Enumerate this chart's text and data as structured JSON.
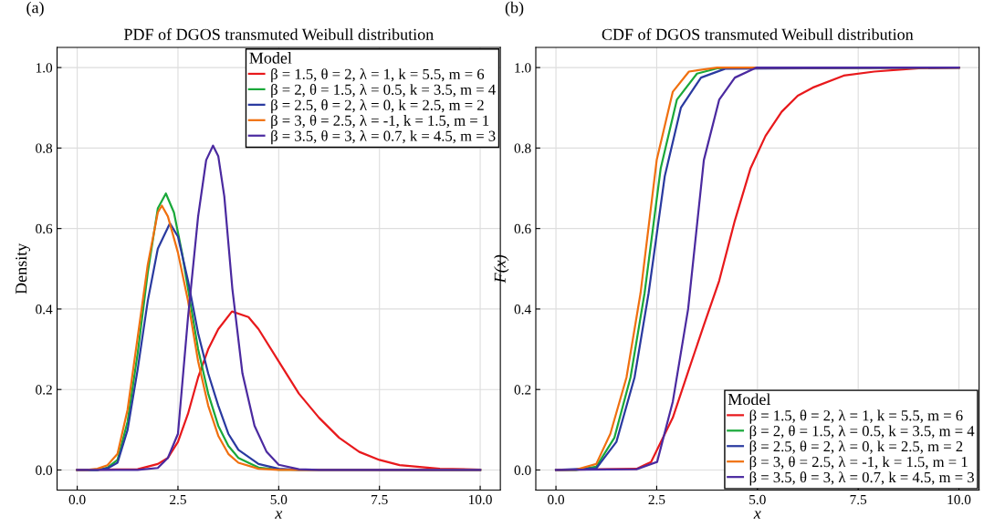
{
  "chart_data": [
    {
      "type": "line",
      "title": "PDF of DGOS transmuted Weibull distribution",
      "xlabel": "x",
      "ylabel": "Density",
      "annotations": [
        "(a)"
      ],
      "legend_title": "Model",
      "legend": "top right",
      "grid": true,
      "xlim": [
        -0.5,
        10.5
      ],
      "xticks": [
        {
          "value": 0,
          "label": "0.0"
        },
        {
          "value": 2.5,
          "label": "2.5"
        },
        {
          "value": 5,
          "label": "5.0"
        },
        {
          "value": 7.5,
          "label": "7.5"
        },
        {
          "value": 10,
          "label": "10.0"
        }
      ],
      "ylim": [
        -0.05,
        1.05
      ],
      "yticks": [
        {
          "value": 0,
          "label": "0.0"
        },
        {
          "value": 0.2,
          "label": "0.2"
        },
        {
          "value": 0.4,
          "label": "0.4"
        },
        {
          "value": 0.6,
          "label": "0.6"
        },
        {
          "value": 0.8,
          "label": "0.8"
        },
        {
          "value": 1.0,
          "label": "1.0"
        }
      ],
      "series": [
        {
          "name": "β = 1.5, θ = 2, λ = 1, k = 5.5, m = 6",
          "color": "#e8191c",
          "x": [
            0,
            1.5,
            2.0,
            2.25,
            2.5,
            2.75,
            3.0,
            3.25,
            3.5,
            3.84,
            4.25,
            4.5,
            5.0,
            5.5,
            6.0,
            6.5,
            7.0,
            7.5,
            8.0,
            9.0,
            10.0
          ],
          "values": [
            0,
            0.002,
            0.015,
            0.03,
            0.07,
            0.14,
            0.23,
            0.3,
            0.35,
            0.394,
            0.38,
            0.35,
            0.27,
            0.19,
            0.13,
            0.08,
            0.045,
            0.025,
            0.012,
            0.003,
            0.001
          ]
        },
        {
          "name": "β = 2, θ = 1.5, λ = 0.5, k = 3.5, m = 4",
          "color": "#1aa83a",
          "x": [
            0,
            0.5,
            0.75,
            1.0,
            1.25,
            1.5,
            1.75,
            2.0,
            2.2,
            2.4,
            2.6,
            2.8,
            3.0,
            3.25,
            3.5,
            3.75,
            4.0,
            4.5,
            5.0,
            10.0
          ],
          "values": [
            0,
            0,
            0.006,
            0.025,
            0.12,
            0.29,
            0.49,
            0.65,
            0.687,
            0.64,
            0.54,
            0.42,
            0.3,
            0.19,
            0.11,
            0.06,
            0.03,
            0.006,
            0.001,
            0
          ]
        },
        {
          "name": "β = 2.5, θ = 2, λ = 0, k = 2.5, m = 2",
          "color": "#2a3aa0",
          "x": [
            0,
            0.5,
            0.75,
            1.0,
            1.25,
            1.5,
            1.75,
            2.0,
            2.3,
            2.5,
            2.75,
            3.0,
            3.25,
            3.5,
            3.75,
            4.0,
            4.5,
            5.0,
            5.5,
            10.0
          ],
          "values": [
            0,
            0,
            0.004,
            0.018,
            0.1,
            0.25,
            0.42,
            0.55,
            0.613,
            0.58,
            0.47,
            0.34,
            0.24,
            0.16,
            0.09,
            0.05,
            0.015,
            0.003,
            0,
            0
          ]
        },
        {
          "name": "β = 3, θ = 2.5, λ = -1, k = 1.5, m = 1",
          "color": "#f07010",
          "x": [
            0,
            0.25,
            0.5,
            0.75,
            1.0,
            1.25,
            1.5,
            1.75,
            2.0,
            2.1,
            2.25,
            2.5,
            2.75,
            3.0,
            3.25,
            3.5,
            3.75,
            4.0,
            4.5,
            5.0,
            10.0
          ],
          "values": [
            0,
            0,
            0.003,
            0.012,
            0.04,
            0.15,
            0.33,
            0.51,
            0.64,
            0.657,
            0.63,
            0.54,
            0.42,
            0.27,
            0.16,
            0.085,
            0.04,
            0.018,
            0.003,
            0,
            0
          ]
        },
        {
          "name": "β = 3.5, θ = 3, λ = 0.7, k = 4.5, m = 3",
          "color": "#4b2aa0",
          "x": [
            0,
            1.5,
            2.0,
            2.25,
            2.5,
            2.75,
            3.0,
            3.2,
            3.37,
            3.5,
            3.65,
            3.85,
            4.1,
            4.4,
            4.7,
            5.0,
            5.5,
            6.0,
            10.0
          ],
          "values": [
            0,
            0,
            0.005,
            0.03,
            0.09,
            0.38,
            0.63,
            0.77,
            0.806,
            0.78,
            0.68,
            0.45,
            0.24,
            0.11,
            0.045,
            0.013,
            0.002,
            0,
            0
          ]
        }
      ]
    },
    {
      "type": "line",
      "title": "CDF of DGOS transmuted Weibull distribution",
      "xlabel": "x",
      "ylabel": "F(x)",
      "annotations": [
        "(b)"
      ],
      "legend_title": "Model",
      "legend": "bottom right",
      "grid": true,
      "xlim": [
        -0.5,
        10.5
      ],
      "xticks": [
        {
          "value": 0,
          "label": "0.0"
        },
        {
          "value": 2.5,
          "label": "2.5"
        },
        {
          "value": 5,
          "label": "5.0"
        },
        {
          "value": 7.5,
          "label": "7.5"
        },
        {
          "value": 10,
          "label": "10.0"
        }
      ],
      "ylim": [
        -0.05,
        1.05
      ],
      "yticks": [
        {
          "value": 0,
          "label": "0.0"
        },
        {
          "value": 0.2,
          "label": "0.2"
        },
        {
          "value": 0.4,
          "label": "0.4"
        },
        {
          "value": 0.6,
          "label": "0.6"
        },
        {
          "value": 0.8,
          "label": "0.8"
        },
        {
          "value": 1.0,
          "label": "1.0"
        }
      ],
      "series": [
        {
          "name": "β = 1.5, θ = 2, λ = 1, k = 5.5, m = 6",
          "color": "#e8191c",
          "x": [
            0,
            2.0,
            2.36,
            2.9,
            3.3,
            3.67,
            4.05,
            4.44,
            4.83,
            5.2,
            5.6,
            6.0,
            6.37,
            7.14,
            7.9,
            9.0,
            10.0
          ],
          "values": [
            0,
            0.003,
            0.02,
            0.13,
            0.25,
            0.36,
            0.47,
            0.62,
            0.75,
            0.83,
            0.89,
            0.93,
            0.95,
            0.98,
            0.99,
            0.998,
            1
          ]
        },
        {
          "name": "β = 2, θ = 1.5, λ = 0.5, k = 3.5, m = 4",
          "color": "#1aa83a",
          "x": [
            0,
            0.5,
            1.0,
            1.45,
            1.85,
            2.2,
            2.6,
            3.0,
            3.5,
            4.0,
            10.0
          ],
          "values": [
            0,
            0,
            0.008,
            0.08,
            0.23,
            0.44,
            0.75,
            0.92,
            0.985,
            0.998,
            1
          ]
        },
        {
          "name": "β = 2.5, θ = 2, λ = 0, k = 2.5, m = 2",
          "color": "#2a3aa0",
          "x": [
            0,
            1.0,
            1.5,
            1.95,
            2.3,
            2.7,
            3.1,
            3.6,
            4.2,
            10.0
          ],
          "values": [
            0,
            0.004,
            0.07,
            0.23,
            0.44,
            0.73,
            0.9,
            0.975,
            0.997,
            1
          ]
        },
        {
          "name": "β = 3, θ = 2.5, λ = -1, k = 1.5, m = 1",
          "color": "#f07010",
          "x": [
            0,
            0.5,
            1.0,
            1.35,
            1.75,
            2.1,
            2.5,
            2.9,
            3.3,
            4.0,
            10.0
          ],
          "values": [
            0,
            0.001,
            0.015,
            0.09,
            0.23,
            0.44,
            0.77,
            0.94,
            0.99,
            1,
            1
          ]
        },
        {
          "name": "β = 3.5, θ = 3, λ = 0.7, k = 4.5, m = 3",
          "color": "#4b2aa0",
          "x": [
            0,
            2.0,
            2.51,
            2.9,
            3.28,
            3.67,
            4.05,
            4.44,
            4.98,
            10.0
          ],
          "values": [
            0,
            0.002,
            0.02,
            0.17,
            0.4,
            0.77,
            0.92,
            0.975,
            1,
            1
          ]
        }
      ]
    }
  ]
}
